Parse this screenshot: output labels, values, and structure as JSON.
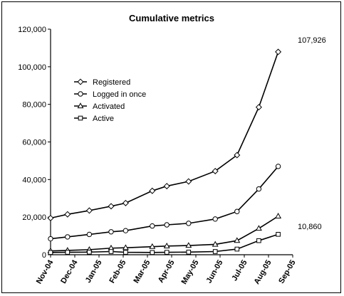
{
  "chart_data": {
    "type": "line",
    "title": "Cumulative metrics",
    "xlabel": "",
    "ylabel": "",
    "categories": [
      "Nov-04",
      "Dec-04",
      "Jan-05",
      "Feb-05",
      "Mar-05",
      "Apr-05",
      "May-05",
      "Jun-05",
      "Jul-05",
      "Aug-05",
      "Sep-05"
    ],
    "x": [
      0,
      0.5,
      1,
      1.5,
      2,
      2.5,
      3,
      3.5,
      4,
      4.5,
      5,
      5.5,
      6,
      6.5,
      7,
      7.5,
      8,
      8.5,
      9,
      9.5,
      10
    ],
    "y_ticks": [
      "0",
      "20,000",
      "40,000",
      "60,000",
      "80,000",
      "100,000",
      "120,000"
    ],
    "ylim": [
      0,
      120000
    ],
    "grid": false,
    "legend_position": "upper-left",
    "series": [
      {
        "name": "Registered",
        "marker": "diamond",
        "x": [
          0,
          0.7,
          1.6,
          2.5,
          3.1,
          4.2,
          4.8,
          5.7,
          6.8,
          7.7,
          8.6,
          9.4
        ],
        "values": [
          19500,
          21500,
          23500,
          25800,
          27500,
          34000,
          36500,
          39000,
          44500,
          53000,
          78500,
          107926
        ]
      },
      {
        "name": "Logged in once",
        "marker": "circle",
        "x": [
          0,
          0.7,
          1.6,
          2.5,
          3.1,
          4.2,
          4.8,
          5.7,
          6.8,
          7.7,
          8.6,
          9.4
        ],
        "values": [
          8500,
          9500,
          10800,
          12200,
          12800,
          15300,
          15900,
          16700,
          19000,
          23000,
          35000,
          47000
        ]
      },
      {
        "name": "Activated",
        "marker": "triangle",
        "x": [
          0,
          0.7,
          1.6,
          2.5,
          3.1,
          4.2,
          4.8,
          5.7,
          6.8,
          7.7,
          8.6,
          9.4
        ],
        "values": [
          2000,
          2300,
          2700,
          3500,
          3700,
          4300,
          4600,
          4900,
          5500,
          7500,
          14000,
          20500
        ]
      },
      {
        "name": "Active",
        "marker": "square",
        "x": [
          0,
          0.7,
          1.6,
          2.5,
          3.1,
          4.2,
          4.8,
          5.7,
          6.8,
          7.7,
          8.6,
          9.4
        ],
        "values": [
          1200,
          1300,
          1400,
          1700,
          1300,
          1200,
          1300,
          1400,
          1700,
          3000,
          7500,
          10860
        ]
      }
    ],
    "annotations": [
      {
        "text": "107,926",
        "series": "Registered"
      },
      {
        "text": "10,860",
        "series": "Active"
      }
    ]
  }
}
